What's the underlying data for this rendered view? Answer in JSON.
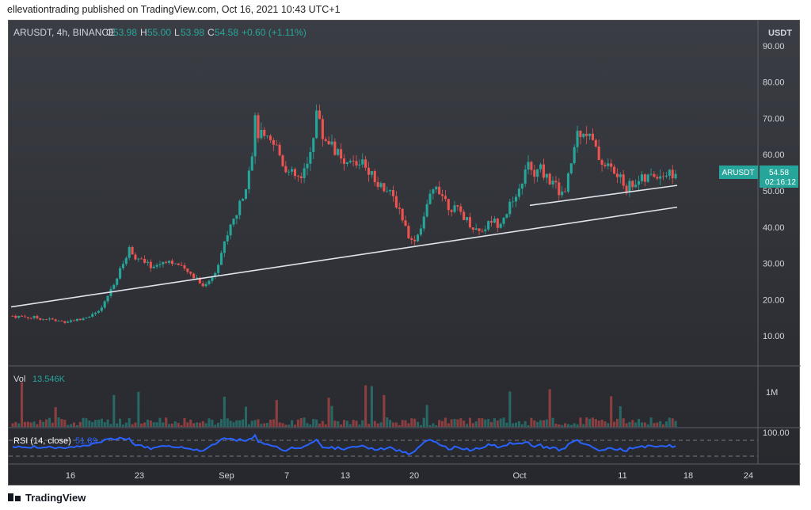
{
  "header": {
    "text": "ellevationtrading published on TradingView.com, Oct 16, 2021 10:43 UTC+1"
  },
  "footer": {
    "brand": "TradingView"
  },
  "legend": {
    "symbol": "ARUSDT, 4h, BINANCE",
    "o_label": "O",
    "o_value": "53.98",
    "h_label": "H",
    "h_value": "55.00",
    "l_label": "L",
    "l_value": "53.98",
    "c_label": "C",
    "c_value": "54.58",
    "change": "+0.60 (+1.11%)"
  },
  "chart_data": {
    "type": "candlestick",
    "symbol": "ARUSDT",
    "currency_label": "USDT",
    "price_ticks": [
      "90.00",
      "80.00",
      "70.00",
      "60.00",
      "50.00",
      "40.00",
      "30.00",
      "20.00",
      "10.00"
    ],
    "ylim": [
      0,
      95
    ],
    "date_ticks": [
      "16",
      "23",
      "Sep",
      "7",
      "13",
      "20",
      "Oct",
      "11",
      "18",
      "24"
    ],
    "last_price_tag": {
      "symbol": "ARUSDT",
      "price": "54.58",
      "countdown": "02:16:12"
    },
    "price_path": [
      [
        0,
        15.5
      ],
      [
        8,
        15
      ],
      [
        16,
        14
      ],
      [
        22,
        14.5
      ],
      [
        26,
        16
      ],
      [
        28,
        16.5
      ],
      [
        30,
        19
      ],
      [
        32,
        23
      ],
      [
        34,
        26
      ],
      [
        36,
        30
      ],
      [
        38,
        34
      ],
      [
        40,
        32
      ],
      [
        43,
        30
      ],
      [
        46,
        29
      ],
      [
        50,
        31
      ],
      [
        53,
        30
      ],
      [
        56,
        28
      ],
      [
        60,
        26
      ],
      [
        62,
        24
      ],
      [
        64,
        25
      ],
      [
        66,
        28
      ],
      [
        68,
        33
      ],
      [
        70,
        38
      ],
      [
        72,
        42
      ],
      [
        74,
        46
      ],
      [
        76,
        52
      ],
      [
        78,
        61
      ],
      [
        79,
        69
      ],
      [
        80,
        66
      ],
      [
        82,
        64
      ],
      [
        84,
        63
      ],
      [
        86,
        62
      ],
      [
        88,
        58
      ],
      [
        90,
        55
      ],
      [
        92,
        54
      ],
      [
        94,
        53
      ],
      [
        96,
        57
      ],
      [
        98,
        66
      ],
      [
        99,
        72
      ],
      [
        101,
        65
      ],
      [
        104,
        63
      ],
      [
        106,
        60
      ],
      [
        108,
        56
      ],
      [
        110,
        58
      ],
      [
        112,
        57
      ],
      [
        114,
        59
      ],
      [
        116,
        56
      ],
      [
        118,
        53
      ],
      [
        120,
        52
      ],
      [
        122,
        50
      ],
      [
        124,
        48
      ],
      [
        126,
        45
      ],
      [
        128,
        40
      ],
      [
        130,
        36
      ],
      [
        132,
        38
      ],
      [
        134,
        43
      ],
      [
        136,
        48
      ],
      [
        138,
        52
      ],
      [
        140,
        49
      ],
      [
        142,
        46
      ],
      [
        144,
        45
      ],
      [
        146,
        44
      ],
      [
        148,
        42
      ],
      [
        150,
        40
      ],
      [
        152,
        39
      ],
      [
        154,
        40
      ],
      [
        156,
        42
      ],
      [
        158,
        41
      ],
      [
        160,
        43
      ],
      [
        162,
        46
      ],
      [
        164,
        47
      ],
      [
        166,
        53
      ],
      [
        168,
        57
      ],
      [
        170,
        54
      ],
      [
        172,
        56
      ],
      [
        174,
        54
      ],
      [
        176,
        52
      ],
      [
        178,
        50
      ],
      [
        180,
        49
      ],
      [
        182,
        58
      ],
      [
        184,
        66
      ],
      [
        186,
        67
      ],
      [
        188,
        65
      ],
      [
        190,
        61
      ],
      [
        192,
        58
      ],
      [
        194,
        57
      ],
      [
        196,
        55
      ],
      [
        198,
        53
      ],
      [
        200,
        51
      ],
      [
        202,
        52
      ],
      [
        204,
        53
      ],
      [
        206,
        53
      ],
      [
        208,
        54
      ],
      [
        210,
        54.58
      ]
    ],
    "trendlines": [
      {
        "from": [
          0,
          18.0
        ],
        "to": [
          217,
          45.5
        ]
      },
      {
        "from": [
          169,
          46.0
        ],
        "to": [
          217,
          51.5
        ]
      }
    ],
    "volume": {
      "label": "Vol",
      "value": "13.546K",
      "axis_tick": "1M"
    },
    "rsi": {
      "label": "RSI (14, close)",
      "value": "51.89",
      "axis_tick": "100.00"
    }
  }
}
